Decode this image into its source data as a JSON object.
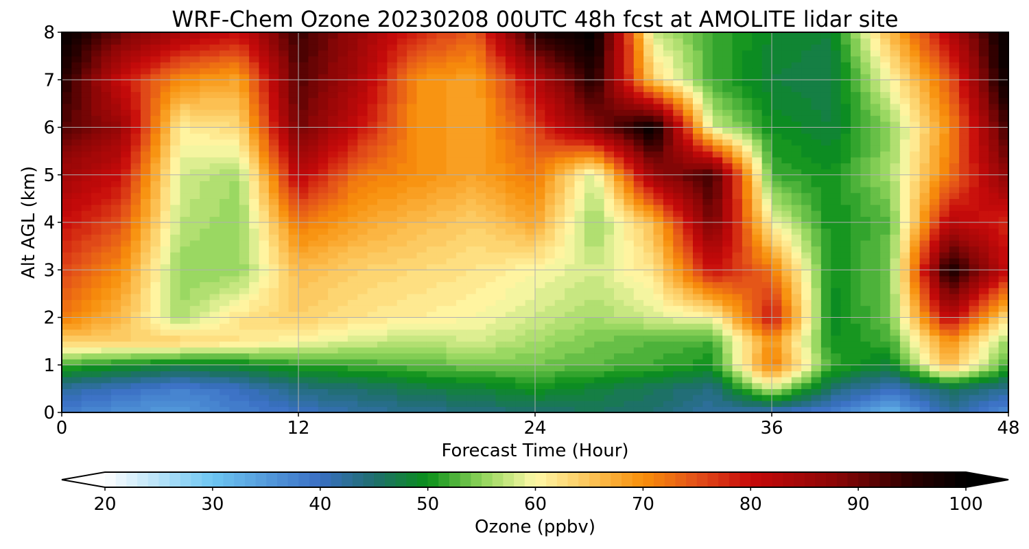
{
  "chart_data": {
    "type": "heatmap",
    "title": "WRF-Chem Ozone  20230208 00UTC 48h fcst at AMOLITE lidar site",
    "xlabel": "Forecast Time (Hour)",
    "ylabel": "Alt AGL (km)",
    "x_ticks": [
      0,
      12,
      24,
      36,
      48
    ],
    "y_ticks": [
      0,
      1,
      2,
      3,
      4,
      5,
      6,
      7,
      8
    ],
    "xlim": [
      0,
      48
    ],
    "ylim": [
      0,
      8
    ],
    "grid": true,
    "colorbar": {
      "label": "Ozone  (ppbv)",
      "ticks": [
        20,
        30,
        40,
        50,
        60,
        70,
        80,
        90,
        100
      ],
      "range": [
        20,
        100
      ],
      "extend": "both",
      "levels_step": 1,
      "stops": [
        {
          "value": 20,
          "color": "#ffffff"
        },
        {
          "value": 30,
          "color": "#6ec6f2"
        },
        {
          "value": 40,
          "color": "#3a6fc4"
        },
        {
          "value": 45,
          "color": "#1f6e6e"
        },
        {
          "value": 50,
          "color": "#0a8f1a"
        },
        {
          "value": 55,
          "color": "#8fd45a"
        },
        {
          "value": 60,
          "color": "#fff9a8"
        },
        {
          "value": 65,
          "color": "#fcc55a"
        },
        {
          "value": 70,
          "color": "#f88f0a"
        },
        {
          "value": 75,
          "color": "#e3501a"
        },
        {
          "value": 80,
          "color": "#c70a0a"
        },
        {
          "value": 88,
          "color": "#8a0606"
        },
        {
          "value": 95,
          "color": "#2a0000"
        },
        {
          "value": 100,
          "color": "#000000"
        }
      ]
    },
    "grid_x_hours": [
      0,
      3,
      6,
      9,
      12,
      15,
      18,
      21,
      24,
      27,
      30,
      33,
      36,
      39,
      42,
      45,
      48
    ],
    "grid_y_km": [
      0,
      0.5,
      1,
      1.5,
      2,
      3,
      4,
      5,
      6,
      7,
      8
    ],
    "values_by_altitude": [
      [
        38,
        36,
        35,
        38,
        40,
        42,
        43,
        44,
        45,
        46,
        45,
        42,
        40,
        38,
        32,
        42,
        36
      ],
      [
        42,
        40,
        38,
        40,
        44,
        45,
        47,
        48,
        50,
        48,
        46,
        44,
        58,
        45,
        40,
        46,
        43
      ],
      [
        52,
        50,
        48,
        49,
        51,
        52,
        53,
        54,
        54,
        53,
        52,
        50,
        72,
        52,
        48,
        66,
        52
      ],
      [
        64,
        64,
        64,
        62,
        60,
        58,
        57,
        58,
        56,
        54,
        53,
        52,
        70,
        50,
        52,
        70,
        55
      ],
      [
        72,
        66,
        56,
        62,
        64,
        62,
        61,
        60,
        58,
        56,
        58,
        60,
        80,
        49,
        54,
        82,
        62
      ],
      [
        76,
        70,
        55,
        55,
        66,
        64,
        63,
        62,
        60,
        58,
        62,
        80,
        72,
        50,
        54,
        98,
        80
      ],
      [
        80,
        75,
        57,
        55,
        72,
        68,
        66,
        64,
        68,
        55,
        66,
        90,
        60,
        50,
        53,
        82,
        78
      ],
      [
        85,
        80,
        58,
        56,
        82,
        72,
        70,
        68,
        72,
        58,
        86,
        94,
        52,
        50,
        56,
        72,
        88
      ],
      [
        92,
        86,
        61,
        63,
        90,
        80,
        70,
        68,
        76,
        88,
        100,
        58,
        50,
        48,
        55,
        70,
        94
      ],
      [
        96,
        80,
        70,
        68,
        92,
        84,
        70,
        68,
        82,
        96,
        64,
        52,
        48,
        47,
        60,
        74,
        100
      ],
      [
        100,
        90,
        84,
        80,
        94,
        86,
        78,
        74,
        96,
        100,
        58,
        52,
        49,
        48,
        66,
        82,
        100
      ]
    ]
  }
}
